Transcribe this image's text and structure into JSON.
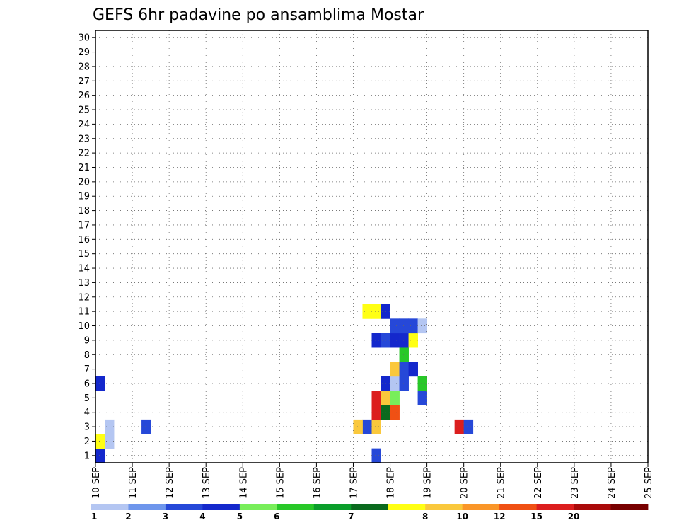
{
  "chart_data": {
    "type": "heatmap",
    "title": "GEFS 6hr padavine po ansamblima Mostar",
    "ylabel": "",
    "xlabel": "",
    "y_ticks": [
      "1",
      "2",
      "3",
      "4",
      "5",
      "6",
      "7",
      "8",
      "9",
      "10",
      "11",
      "12",
      "13",
      "14",
      "15",
      "16",
      "17",
      "18",
      "19",
      "20",
      "21",
      "22",
      "23",
      "24",
      "25",
      "26",
      "27",
      "28",
      "29",
      "30"
    ],
    "x_ticks": [
      "10 SEP",
      "11 SEP",
      "12 SEP",
      "13 SEP",
      "14 SEP",
      "15 SEP",
      "16 SEP",
      "17 SEP",
      "18 SEP",
      "19 SEP",
      "20 SEP",
      "21 SEP",
      "22 SEP",
      "23 SEP",
      "24 SEP",
      "25 SEP"
    ],
    "x_unit": "6-hour steps",
    "legend": {
      "labels": [
        "1",
        "2",
        "3",
        "4",
        "5",
        "6",
        "7",
        "8",
        "10",
        "12",
        "15",
        "20"
      ],
      "colors": [
        "#b4c6f2",
        "#6e96ec",
        "#2648d8",
        "#1428cc",
        "#78ee5a",
        "#28c828",
        "#0a9e2a",
        "#0a6a1e",
        "#ffff14",
        "#fac83c",
        "#fa9628",
        "#f05014",
        "#dc1e1e",
        "#aa0a0a",
        "#780000"
      ]
    },
    "cells": [
      [
        1,
        0,
        3
      ],
      [
        1,
        30,
        2
      ],
      [
        2,
        1,
        0
      ],
      [
        2,
        0,
        8
      ],
      [
        3,
        1,
        0
      ],
      [
        3,
        5,
        2
      ],
      [
        3,
        29,
        2
      ],
      [
        3,
        28,
        9
      ],
      [
        3,
        30,
        9
      ],
      [
        3,
        39,
        12
      ],
      [
        3,
        40,
        2
      ],
      [
        4,
        30,
        12
      ],
      [
        4,
        31,
        7
      ],
      [
        4,
        32,
        11
      ],
      [
        5,
        30,
        12
      ],
      [
        5,
        31,
        9
      ],
      [
        5,
        32,
        4
      ],
      [
        5,
        35,
        2
      ],
      [
        6,
        0,
        3
      ],
      [
        6,
        31,
        3
      ],
      [
        6,
        32,
        0
      ],
      [
        6,
        33,
        2
      ],
      [
        6,
        35,
        5
      ],
      [
        7,
        32,
        9
      ],
      [
        7,
        33,
        2
      ],
      [
        7,
        34,
        3
      ],
      [
        8,
        33,
        5
      ],
      [
        9,
        30,
        3
      ],
      [
        9,
        31,
        2
      ],
      [
        9,
        32,
        3
      ],
      [
        9,
        33,
        3
      ],
      [
        9,
        34,
        8
      ],
      [
        10,
        32,
        2
      ],
      [
        10,
        33,
        2
      ],
      [
        10,
        34,
        2
      ],
      [
        10,
        35,
        0
      ],
      [
        11,
        29,
        8
      ],
      [
        11,
        30,
        8
      ],
      [
        11,
        31,
        3
      ]
    ]
  }
}
